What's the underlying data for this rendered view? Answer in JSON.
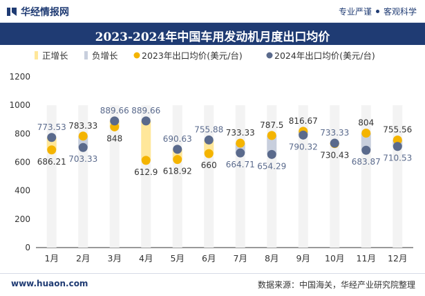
{
  "header": {
    "brand": "华经情报网",
    "tagline_left": "专业严谨",
    "tagline_right": "客观科学"
  },
  "footer": {
    "site": "www.huaon.com",
    "source": "数据来源：中国海关，华经产业研究院整理"
  },
  "colors": {
    "bg_bar": "#f3f3f3",
    "pos_bar": "#ffe79a",
    "neg_bar": "#c8cfdd",
    "dot2023": "#f4b400",
    "dot2024": "#5a6a8c",
    "title_bg": "#1f3b73"
  },
  "chart_data": {
    "type": "bar+dot",
    "title": "2023-2024年中国车用发动机月度出口均价",
    "categories": [
      "1月",
      "2月",
      "3月",
      "4月",
      "5月",
      "6月",
      "7月",
      "8月",
      "9月",
      "10月",
      "11月",
      "12月"
    ],
    "legend": [
      "正增长",
      "负增长",
      "2023年出口均价(美元/台)",
      "2024年出口均价(美元/台)"
    ],
    "legend_position": "top",
    "ylim": [
      0,
      1200
    ],
    "yticks": [
      0,
      200,
      400,
      600,
      800,
      1000,
      1200
    ],
    "grid": false,
    "series": [
      {
        "name": "2023年出口均价(美元/台)",
        "values": [
          686.21,
          783.33,
          848,
          612.9,
          618.92,
          660,
          733.33,
          787.5,
          816.67,
          730.43,
          804,
          755.56
        ]
      },
      {
        "name": "2024年出口均价(美元/台)",
        "values": [
          773.53,
          703.33,
          889.66,
          889.66,
          690.63,
          755.88,
          664.71,
          654.29,
          790.32,
          733.33,
          683.87,
          710.53
        ]
      }
    ]
  }
}
